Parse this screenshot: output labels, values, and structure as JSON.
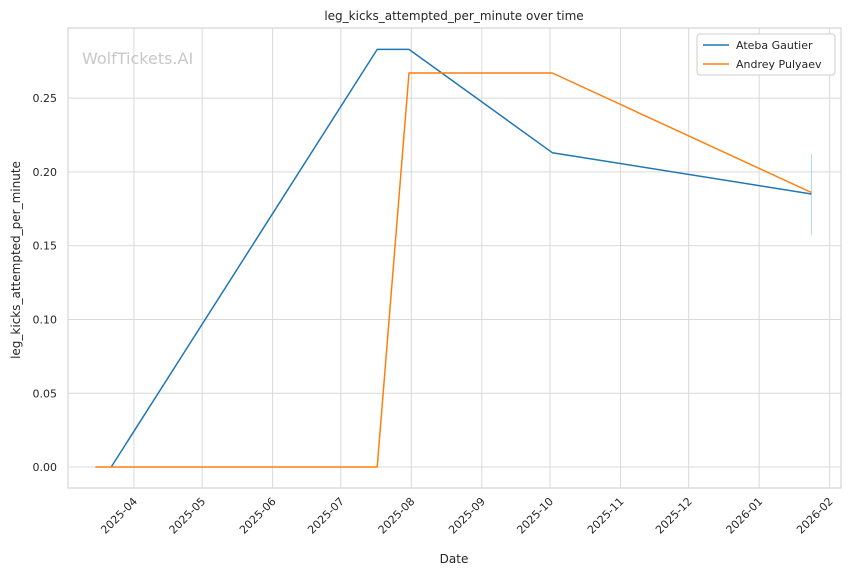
{
  "chart_data": {
    "type": "line",
    "title": "leg_kicks_attempted_per_minute over time",
    "xlabel": "Date",
    "ylabel": "leg_kicks_attempted_per_minute",
    "watermark": "WolfTickets.AI",
    "x_range": [
      "2025-03-03",
      "2026-02-06"
    ],
    "ylim": [
      -0.0142,
      0.2975
    ],
    "grid": true,
    "legend_position": "top-right",
    "x_ticks": [
      "2025-04",
      "2025-05",
      "2025-06",
      "2025-07",
      "2025-08",
      "2025-09",
      "2025-10",
      "2025-11",
      "2025-12",
      "2026-01",
      "2026-02"
    ],
    "x_tick_dates": [
      "2025-04-01",
      "2025-05-01",
      "2025-06-01",
      "2025-07-01",
      "2025-08-01",
      "2025-09-01",
      "2025-10-01",
      "2025-11-01",
      "2025-12-01",
      "2026-01-01",
      "2026-02-01"
    ],
    "y_ticks": [
      "0.00",
      "0.05",
      "0.10",
      "0.15",
      "0.20",
      "0.25"
    ],
    "y_tick_values": [
      0,
      0.05,
      0.1,
      0.15,
      0.2,
      0.25
    ],
    "series": [
      {
        "name": "Ateba Gautier",
        "color": "#1f77b4",
        "points": [
          {
            "x": "2025-03-22",
            "y": 0.0
          },
          {
            "x": "2025-07-17",
            "y": 0.283
          },
          {
            "x": "2025-07-31",
            "y": 0.283
          },
          {
            "x": "2025-10-02",
            "y": 0.213
          },
          {
            "x": "2026-01-24",
            "y": 0.185
          }
        ]
      },
      {
        "name": "Andrey Pulyaev",
        "color": "#ff7f0e",
        "points": [
          {
            "x": "2025-03-15",
            "y": 0.0
          },
          {
            "x": "2025-07-17",
            "y": 0.0
          },
          {
            "x": "2025-07-31",
            "y": 0.267
          },
          {
            "x": "2025-10-02",
            "y": 0.267
          },
          {
            "x": "2026-01-24",
            "y": 0.186
          }
        ]
      }
    ],
    "error_bar": {
      "x": "2026-01-24",
      "low": 0.157,
      "high": 0.212,
      "color": "#add8e6"
    }
  }
}
